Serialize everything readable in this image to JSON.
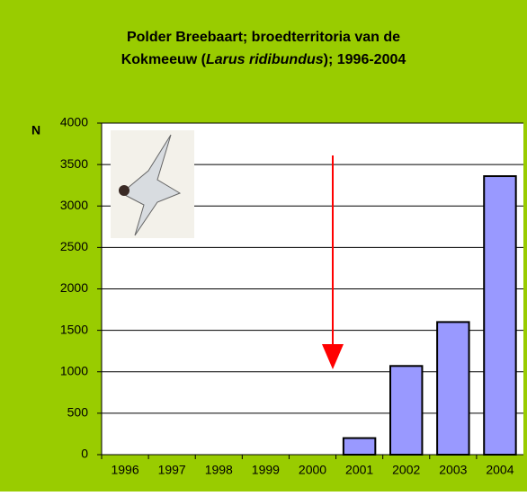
{
  "chart_data": {
    "type": "bar",
    "title": {
      "line1": "Polder Breebaart; broedterritoria van de",
      "line2_start": "Kokmeeuw (",
      "line2_italic": "Larus ridibundus",
      "line2_end": "); 1996-2004"
    },
    "y_label": "N",
    "categories": [
      "1996",
      "1997",
      "1998",
      "1999",
      "2000",
      "2001",
      "2002",
      "2003",
      "2004"
    ],
    "values": [
      0,
      0,
      0,
      0,
      0,
      200,
      1070,
      1600,
      3360
    ],
    "color": "#9999ff",
    "ylim": [
      0,
      4000
    ],
    "yticks": [
      0,
      500,
      1000,
      1500,
      2000,
      2500,
      3000,
      3500,
      4000
    ],
    "grid": true
  }
}
